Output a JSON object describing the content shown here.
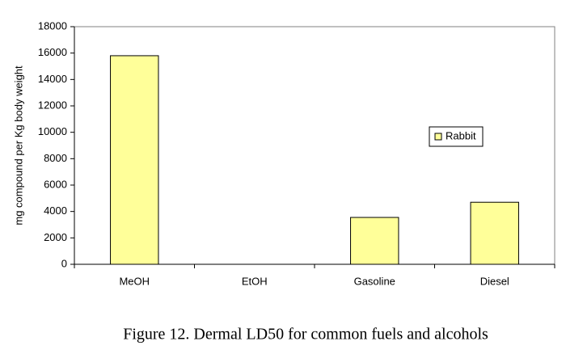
{
  "chart_data": {
    "type": "bar",
    "ylabel": "mg compound per Kg body weight",
    "caption": "Figure 12.  Dermal LD50 for common fuels and alcohols",
    "categories": [
      "MeOH",
      "EtOH",
      "Gasoline",
      "Diesel"
    ],
    "series": [
      {
        "name": "Rabbit",
        "color": "#ffff99",
        "values": [
          15800,
          null,
          3550,
          4700
        ]
      }
    ],
    "ylim": [
      0,
      18000
    ],
    "yticks": [
      0,
      2000,
      4000,
      6000,
      8000,
      10000,
      12000,
      14000,
      16000,
      18000
    ],
    "grid": false,
    "legend": "right"
  }
}
